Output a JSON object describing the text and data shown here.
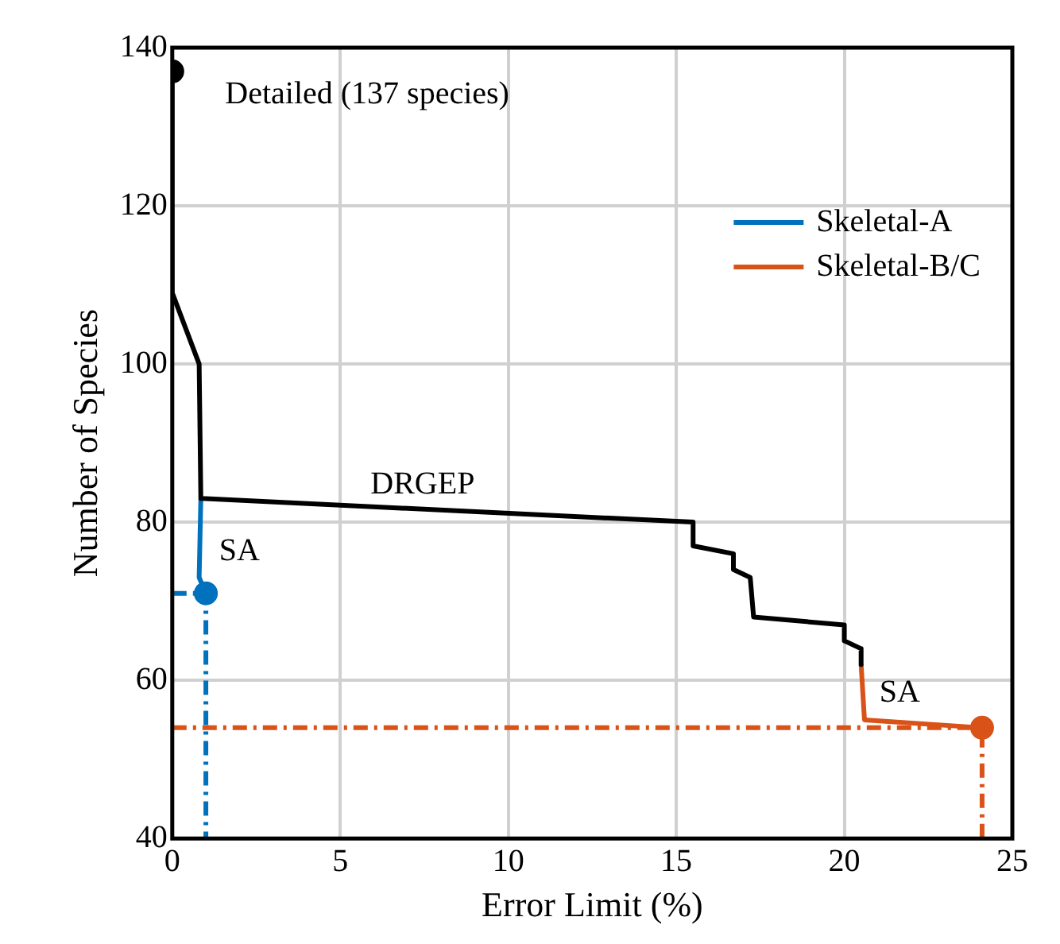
{
  "chart_data": {
    "type": "line",
    "xlabel": "Error Limit (%)",
    "ylabel": "Number of Species",
    "xlim": [
      0,
      25
    ],
    "xticks": [
      0,
      5,
      10,
      15,
      20,
      25
    ],
    "ylim": [
      40,
      140
    ],
    "yticks": [
      40,
      60,
      80,
      100,
      120,
      140
    ],
    "grid": true,
    "legend": "top right",
    "series": [
      {
        "type": "line",
        "color": "#000000",
        "marker": "none",
        "x": [
          0,
          0,
          0.8,
          0.85,
          15.5,
          15.5,
          16.7,
          16.7,
          17.2,
          17.3,
          20.0,
          20.0,
          20.5,
          20.5
        ],
        "values": [
          137,
          109,
          100,
          83,
          80,
          77,
          76,
          74,
          73,
          68,
          67,
          65,
          64,
          62
        ]
      },
      {
        "type": "line",
        "name": "Skeletal-A",
        "color": "#0072bd",
        "marker": "none",
        "x": [
          0.85,
          0.8,
          1.0
        ],
        "values": [
          83,
          73,
          71
        ]
      },
      {
        "type": "line",
        "name": "Skeletal-B/C",
        "color": "#d95319",
        "marker": "none",
        "x": [
          20.5,
          20.6,
          24.1
        ],
        "values": [
          62,
          55,
          54
        ]
      },
      {
        "type": "line",
        "color": "#0072bd",
        "marker": "none",
        "line_style": "dashed",
        "x": [
          0,
          1.0,
          1.0
        ],
        "values": [
          71,
          71,
          40
        ]
      },
      {
        "type": "line",
        "color": "#d95319",
        "marker": "none",
        "line_style": "dashed",
        "x": [
          0,
          24.1,
          24.1
        ],
        "values": [
          54,
          54,
          40
        ]
      },
      {
        "type": "scatter",
        "color": "#000000",
        "marker": "circle",
        "x": [
          0
        ],
        "values": [
          137
        ]
      },
      {
        "type": "scatter",
        "color": "#0072bd",
        "marker": "circle",
        "x": [
          1.0
        ],
        "values": [
          71
        ]
      },
      {
        "type": "scatter",
        "color": "#d95319",
        "marker": "circle",
        "x": [
          24.1
        ],
        "values": [
          54
        ]
      }
    ],
    "annotations": [
      "Detailed (137 species)",
      "DRGEP",
      "SA",
      "SA"
    ]
  }
}
